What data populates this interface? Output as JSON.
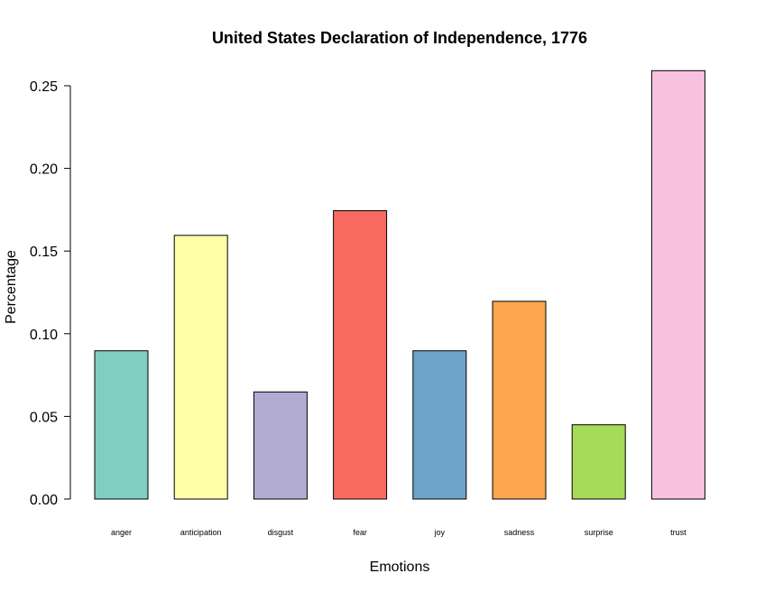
{
  "chart_data": {
    "type": "bar",
    "title": "United States Declaration of Independence, 1776",
    "xlabel": "Emotions",
    "ylabel": "Percentage",
    "categories": [
      "anger",
      "anticipation",
      "disgust",
      "fear",
      "joy",
      "sadness",
      "surprise",
      "trust"
    ],
    "values": [
      0.0897,
      0.1595,
      0.0648,
      0.1744,
      0.0897,
      0.1196,
      0.0449,
      0.2591
    ],
    "colors": [
      "#80CDC1",
      "#FFFFAA",
      "#B2ABD2",
      "#F76A60",
      "#6FA3CA",
      "#FCA450",
      "#A6DA58",
      "#F9C1E0"
    ],
    "ylim": [
      0,
      0.25
    ],
    "yticks": [
      0.0,
      0.05,
      0.1,
      0.15,
      0.2,
      0.25
    ],
    "ytick_labels": [
      "0.00",
      "0.05",
      "0.10",
      "0.15",
      "0.20",
      "0.25"
    ],
    "grid": false,
    "legend": "none"
  }
}
